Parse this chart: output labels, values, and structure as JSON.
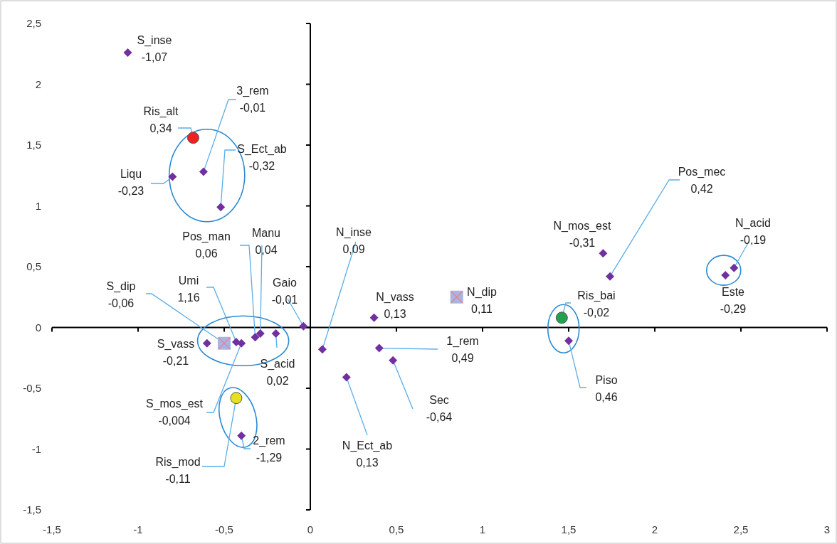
{
  "chart_data": {
    "type": "scatter",
    "xlim": [
      -1.5,
      3
    ],
    "ylim": [
      -1.5,
      2.5
    ],
    "xticks": [
      {
        "value": -1.5,
        "label": "-1,5"
      },
      -1,
      {
        "value": -0.5,
        "label": "-0,5"
      },
      0,
      {
        "value": 0.5,
        "label": "0,5"
      },
      1,
      {
        "value": 1.5,
        "label": "1,5"
      },
      2,
      {
        "value": 2.5,
        "label": "2,5"
      },
      3
    ],
    "yticks": [
      {
        "value": -1.5,
        "label": "-1,5"
      },
      -1,
      {
        "value": -0.5,
        "label": "-0,5"
      },
      0,
      {
        "value": 0.5,
        "label": "0,5"
      },
      1,
      {
        "value": 1.5,
        "label": "1,5"
      },
      2,
      {
        "value": 2.5,
        "label": "2,5"
      }
    ],
    "series": [
      {
        "color": "#7030a0",
        "marker": "diamond",
        "x": [
          -1.06,
          -0.62,
          -0.52,
          -0.8,
          -0.32,
          -0.29,
          -0.43,
          -0.04,
          -0.6,
          -0.2,
          -0.4,
          -0.4,
          0.07,
          0.37,
          0.4,
          0.48,
          0.21,
          1.7,
          1.74,
          1.5,
          2.41,
          2.46
        ],
        "values": [
          2.26,
          1.28,
          0.99,
          1.24,
          -0.08,
          -0.05,
          -0.12,
          0.01,
          -0.13,
          -0.05,
          -0.13,
          -0.89,
          -0.18,
          0.08,
          -0.17,
          -0.27,
          -0.41,
          0.61,
          0.42,
          -0.11,
          0.43,
          0.49
        ]
      },
      {
        "color": "#ee2222",
        "marker": "circle",
        "x": [
          -0.68
        ],
        "values": [
          1.56
        ]
      },
      {
        "color": "#e6e01e",
        "marker": "circle",
        "x": [
          -0.43
        ],
        "values": [
          -0.58
        ]
      },
      {
        "color": "#22a050",
        "marker": "circle",
        "x": [
          1.46
        ],
        "values": [
          0.08
        ]
      },
      {
        "color": "#a9b4e4",
        "marker": "square",
        "x": [
          -0.5,
          0.85
        ],
        "values": [
          -0.13,
          0.25
        ]
      }
    ],
    "annotations": [
      {
        "text": "S_inse\n-1,07",
        "x": -1.06,
        "y": 2.26
      },
      {
        "text": "Ris_alt\n0,34",
        "x": -0.68,
        "y": 1.56
      },
      {
        "text": "3_rem\n-0,01",
        "x": -0.62,
        "y": 1.28
      },
      {
        "text": "S_Ect_ab\n-0,32",
        "x": -0.52,
        "y": 0.99
      },
      {
        "text": "Liqu\n-0,23",
        "x": -0.8,
        "y": 1.24
      },
      {
        "text": "Pos_man\n0,06",
        "x": -0.32,
        "y": -0.08
      },
      {
        "text": "Manu\n0,04",
        "x": -0.29,
        "y": -0.05
      },
      {
        "text": "Umi\n1,16",
        "x": -0.43,
        "y": -0.12
      },
      {
        "text": "S_dip\n-0,06",
        "x": -0.5,
        "y": -0.13
      },
      {
        "text": "Gaio\n-0,01",
        "x": -0.04,
        "y": 0.01
      },
      {
        "text": "S_vass\n-0,21",
        "x": -0.6,
        "y": -0.13
      },
      {
        "text": "S_acid\n0,02",
        "x": -0.2,
        "y": -0.05
      },
      {
        "text": "S_mos_est\n-0,004",
        "x": -0.4,
        "y": -0.13
      },
      {
        "text": "Ris_mod\n-0,11",
        "x": -0.43,
        "y": -0.58
      },
      {
        "text": "2_rem\n-1,29",
        "x": -0.4,
        "y": -0.89
      },
      {
        "text": "N_inse\n0,09",
        "x": 0.07,
        "y": -0.18
      },
      {
        "text": "N_vass\n0,13",
        "x": 0.37,
        "y": 0.08
      },
      {
        "text": "N_dip\n0,11",
        "x": 0.85,
        "y": 0.25
      },
      {
        "text": "1_rem\n0,49",
        "x": 0.4,
        "y": -0.17
      },
      {
        "text": "Sec\n-0,64",
        "x": 0.48,
        "y": -0.27
      },
      {
        "text": "N_Ect_ab\n0,13",
        "x": 0.21,
        "y": -0.41
      },
      {
        "text": "N_mos_est\n-0,31",
        "x": 1.7,
        "y": 0.61
      },
      {
        "text": "Pos_mec\n0,42",
        "x": 1.74,
        "y": 0.42
      },
      {
        "text": "Ris_bai\n-0,02",
        "x": 1.46,
        "y": 0.08
      },
      {
        "text": "Piso\n0,46",
        "x": 1.5,
        "y": -0.11
      },
      {
        "text": "Este\n-0,29",
        "x": 2.41,
        "y": 0.43
      },
      {
        "text": "N_acid\n-0,19",
        "x": 2.46,
        "y": 0.49
      }
    ]
  }
}
